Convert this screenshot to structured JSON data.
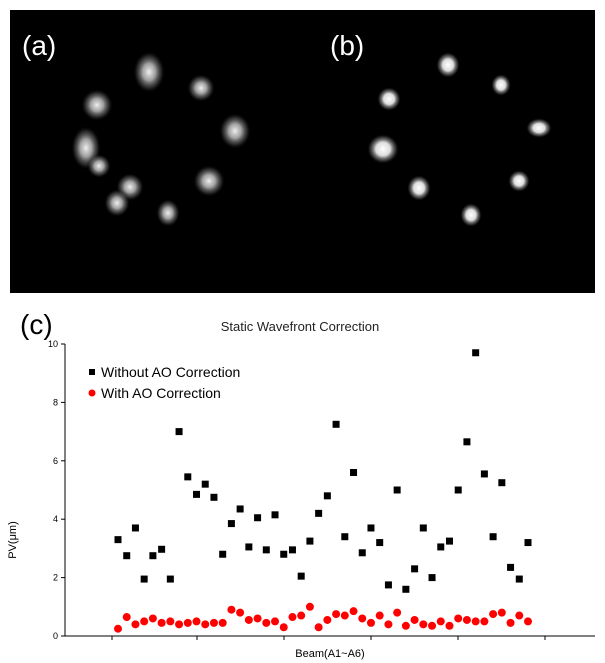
{
  "panels": {
    "a": "(a)",
    "b": "(b)",
    "c": "(c)"
  },
  "chart_data": {
    "type": "scatter",
    "title": "Static Wavefront Correction",
    "xlabel": "Beam(A1~A6)",
    "ylabel": "PV(μm)",
    "ylim": [
      0,
      10
    ],
    "yticks": [
      "0",
      "2",
      "4",
      "6",
      "8",
      "10"
    ],
    "legend_position": "top-left",
    "colors": {
      "without": "#000000",
      "with": "#ff0000"
    },
    "series": [
      {
        "name": "Without AO Correction",
        "marker": "square",
        "points": [
          [
            1,
            3.3
          ],
          [
            2,
            2.75
          ],
          [
            3,
            3.7
          ],
          [
            4,
            1.95
          ],
          [
            5,
            2.75
          ],
          [
            6,
            2.97
          ],
          [
            7,
            1.95
          ],
          [
            8,
            7.0
          ],
          [
            9,
            5.45
          ],
          [
            10,
            4.85
          ],
          [
            11,
            5.2
          ],
          [
            12,
            4.75
          ],
          [
            13,
            2.8
          ],
          [
            14,
            3.85
          ],
          [
            15,
            4.35
          ],
          [
            16,
            3.05
          ],
          [
            17,
            4.05
          ],
          [
            18,
            2.95
          ],
          [
            19,
            4.15
          ],
          [
            20,
            2.8
          ],
          [
            21,
            2.95
          ],
          [
            22,
            2.05
          ],
          [
            23,
            3.25
          ],
          [
            24,
            4.2
          ],
          [
            25,
            4.8
          ],
          [
            26,
            7.25
          ],
          [
            27,
            3.4
          ],
          [
            28,
            5.6
          ],
          [
            29,
            2.85
          ],
          [
            30,
            3.7
          ],
          [
            31,
            3.2
          ],
          [
            32,
            1.75
          ],
          [
            33,
            5.0
          ],
          [
            34,
            1.6
          ],
          [
            35,
            2.3
          ],
          [
            36,
            3.7
          ],
          [
            37,
            2.0
          ],
          [
            38,
            3.05
          ],
          [
            39,
            3.25
          ],
          [
            40,
            5.0
          ],
          [
            41,
            6.65
          ],
          [
            42,
            9.7
          ],
          [
            43,
            5.55
          ],
          [
            44,
            3.4
          ],
          [
            45,
            5.25
          ],
          [
            46,
            2.35
          ],
          [
            47,
            1.95
          ],
          [
            48,
            3.2
          ]
        ]
      },
      {
        "name": "With AO Correction",
        "marker": "circle",
        "points": [
          [
            1,
            0.25
          ],
          [
            2,
            0.65
          ],
          [
            3,
            0.4
          ],
          [
            4,
            0.5
          ],
          [
            5,
            0.6
          ],
          [
            6,
            0.45
          ],
          [
            7,
            0.5
          ],
          [
            8,
            0.4
          ],
          [
            9,
            0.45
          ],
          [
            10,
            0.5
          ],
          [
            11,
            0.4
          ],
          [
            12,
            0.45
          ],
          [
            13,
            0.45
          ],
          [
            14,
            0.9
          ],
          [
            15,
            0.8
          ],
          [
            16,
            0.55
          ],
          [
            17,
            0.6
          ],
          [
            18,
            0.45
          ],
          [
            19,
            0.5
          ],
          [
            20,
            0.3
          ],
          [
            21,
            0.65
          ],
          [
            22,
            0.7
          ],
          [
            23,
            1.0
          ],
          [
            24,
            0.3
          ],
          [
            25,
            0.55
          ],
          [
            26,
            0.75
          ],
          [
            27,
            0.7
          ],
          [
            28,
            0.85
          ],
          [
            29,
            0.6
          ],
          [
            30,
            0.45
          ],
          [
            31,
            0.7
          ],
          [
            32,
            0.4
          ],
          [
            33,
            0.8
          ],
          [
            34,
            0.35
          ],
          [
            35,
            0.55
          ],
          [
            36,
            0.4
          ],
          [
            37,
            0.35
          ],
          [
            38,
            0.5
          ],
          [
            39,
            0.35
          ],
          [
            40,
            0.6
          ],
          [
            41,
            0.55
          ],
          [
            42,
            0.5
          ],
          [
            43,
            0.5
          ],
          [
            44,
            0.75
          ],
          [
            45,
            0.8
          ],
          [
            46,
            0.45
          ],
          [
            47,
            0.7
          ],
          [
            48,
            0.5
          ]
        ]
      }
    ]
  }
}
